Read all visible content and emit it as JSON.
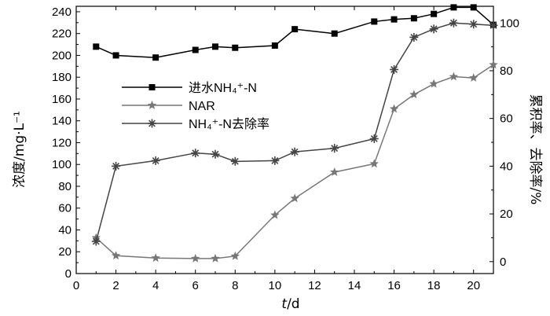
{
  "chart_data": {
    "type": "line",
    "xlabel_italic": "t",
    "xlabel_unit": "/d",
    "ylabel_left": "浓度/mg·L⁻¹",
    "ylabel_right": "累积率、去除率/%",
    "xlim": [
      0,
      21
    ],
    "ylim_left": [
      0,
      245
    ],
    "ylim_right": [
      -5,
      107
    ],
    "x_ticks": [
      "0",
      "2",
      "4",
      "6",
      "8",
      "10",
      "12",
      "14",
      "16",
      "18",
      "20"
    ],
    "y_left_ticks": [
      "0",
      "20",
      "40",
      "60",
      "80",
      "100",
      "120",
      "140",
      "160",
      "180",
      "200",
      "220",
      "240"
    ],
    "y_right_ticks": [
      "0",
      "20",
      "40",
      "60",
      "80",
      "100"
    ],
    "legend_position": "left-center",
    "series": [
      {
        "name": "进水NH₄⁺-N",
        "axis": "left",
        "marker": "square",
        "color": "#000000",
        "x": [
          1,
          2,
          4,
          6,
          7,
          8,
          10,
          11,
          13,
          15,
          16,
          17,
          18,
          19,
          20,
          21
        ],
        "y": [
          208,
          200,
          198,
          205,
          208,
          207,
          209,
          224,
          220,
          231,
          233,
          234,
          238,
          244,
          244,
          228
        ]
      },
      {
        "name": "NAR",
        "axis": "right",
        "marker": "star",
        "color": "#777777",
        "x": [
          1,
          2,
          4,
          6,
          7,
          8,
          10,
          11,
          13,
          15,
          16,
          17,
          18,
          19,
          20,
          21
        ],
        "y": [
          10,
          2.5,
          1.5,
          1.3,
          1.3,
          2.3,
          19.5,
          26.5,
          37.5,
          41,
          64,
          70,
          74.5,
          77.5,
          77,
          82.5
        ]
      },
      {
        "name": "NH₄⁺-N去除率",
        "axis": "right",
        "marker": "asterisk",
        "color": "#444444",
        "x": [
          1,
          2,
          4,
          6,
          7,
          8,
          10,
          11,
          13,
          15,
          16,
          17,
          18,
          19,
          20,
          21
        ],
        "y": [
          8.5,
          40,
          42.3,
          45.5,
          45,
          42,
          42.3,
          46,
          47.5,
          51.5,
          80.5,
          94,
          97.5,
          100,
          99.5,
          99
        ]
      }
    ]
  }
}
